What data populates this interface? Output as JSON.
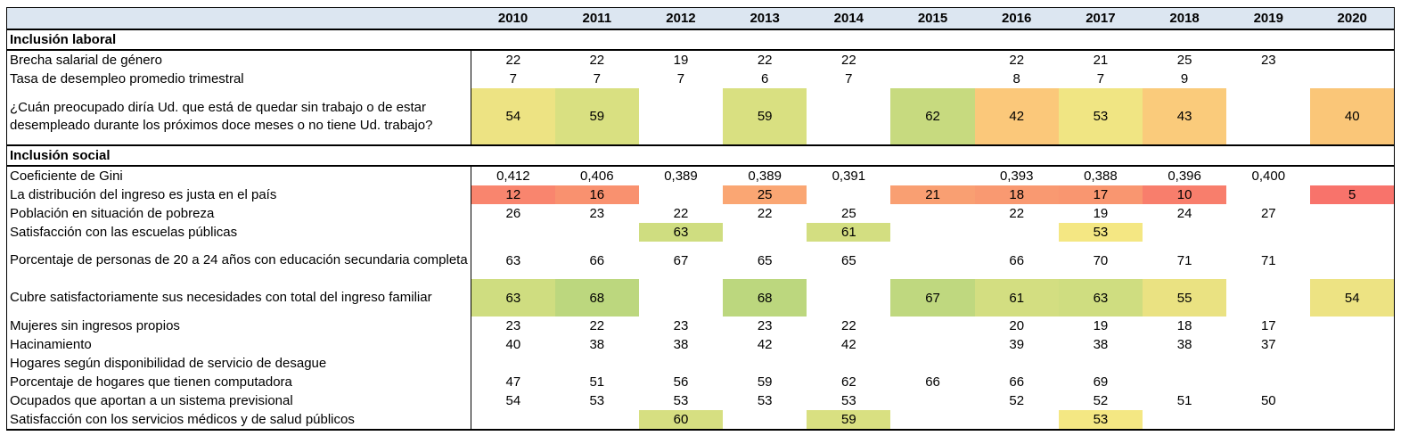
{
  "colors": {
    "header_bg": "#DCE6F1",
    "border": "#000000"
  },
  "header": {
    "corner_label": "",
    "years": [
      "2010",
      "2011",
      "2012",
      "2013",
      "2014",
      "2015",
      "2016",
      "2017",
      "2018",
      "2019",
      "2020"
    ]
  },
  "sections": [
    {
      "title": "Inclusión laboral",
      "rows": [
        {
          "label": "Brecha salarial de género",
          "lines": 1,
          "values": [
            "22",
            "22",
            "19",
            "22",
            "22",
            "",
            "22",
            "21",
            "25",
            "23",
            ""
          ],
          "colors": [
            "",
            "",
            "",
            "",
            "",
            "",
            "",
            "",
            "",
            "",
            ""
          ]
        },
        {
          "label": "Tasa de desempleo promedio trimestral",
          "lines": 1,
          "values": [
            "7",
            "7",
            "7",
            "6",
            "7",
            "",
            "8",
            "7",
            "9",
            "",
            ""
          ],
          "colors": [
            "",
            "",
            "",
            "",
            "",
            "",
            "",
            "",
            "",
            "",
            ""
          ]
        },
        {
          "label": "¿Cuán preocupado diría Ud. que está de quedar sin trabajo o de estar desempleado durante los próximos doce meses o no tiene Ud. trabajo?",
          "lines": 3,
          "values": [
            "54",
            "59",
            "",
            "59",
            "",
            "62",
            "42",
            "53",
            "43",
            "",
            "40"
          ],
          "colors": [
            "#EDE383",
            "#D9E081",
            "",
            "#D9E081",
            "",
            "#C7DA7F",
            "#FBC87A",
            "#F0E583",
            "#FACB7B",
            "",
            "#FAC678"
          ]
        }
      ]
    },
    {
      "title": "Inclusión social",
      "rows": [
        {
          "label": "Coeficiente de Gini",
          "lines": 1,
          "values": [
            "0,412",
            "0,406",
            "0,389",
            "0,389",
            "0,391",
            "",
            "0,393",
            "0,388",
            "0,396",
            "0,400",
            ""
          ],
          "colors": [
            "",
            "",
            "",
            "",
            "",
            "",
            "",
            "",
            "",
            "",
            ""
          ]
        },
        {
          "label": "La distribución del ingreso es justa en el país",
          "lines": 1,
          "values": [
            "12",
            "16",
            "",
            "25",
            "",
            "21",
            "18",
            "17",
            "10",
            "",
            "5"
          ],
          "colors": [
            "#F9856E",
            "#F9916F",
            "",
            "#FAA673",
            "",
            "#F99F72",
            "#F99971",
            "#F99670",
            "#F87E6C",
            "",
            "#F8736B"
          ]
        },
        {
          "label": "Población en situación de pobreza",
          "lines": 1,
          "values": [
            "26",
            "23",
            "22",
            "22",
            "25",
            "",
            "22",
            "19",
            "24",
            "27",
            ""
          ],
          "colors": [
            "",
            "",
            "",
            "",
            "",
            "",
            "",
            "",
            "",
            "",
            ""
          ]
        },
        {
          "label": "Satisfacción con las escuelas públicas",
          "lines": 1,
          "values": [
            "",
            "",
            "63",
            "",
            "61",
            "",
            "",
            "53",
            "",
            "",
            ""
          ],
          "colors": [
            "",
            "",
            "#CFDD80",
            "",
            "#D3DE81",
            "",
            "",
            "#F4E783",
            "",
            "",
            ""
          ]
        },
        {
          "label": "Porcentaje de personas de 20 a 24 años con educación secundaria completa",
          "lines": 2,
          "values": [
            "63",
            "66",
            "67",
            "65",
            "65",
            "",
            "66",
            "70",
            "71",
            "71",
            ""
          ],
          "colors": [
            "",
            "",
            "",
            "",
            "",
            "",
            "",
            "",
            "",
            "",
            ""
          ]
        },
        {
          "label": "Cubre satisfactoriamente sus necesidades con total del ingreso familiar",
          "lines": 2,
          "values": [
            "63",
            "68",
            "",
            "68",
            "",
            "67",
            "61",
            "63",
            "55",
            "",
            "54"
          ],
          "colors": [
            "#CFDD80",
            "#BCD77E",
            "",
            "#BCD77E",
            "",
            "#BFD87F",
            "#D3DE81",
            "#CFDD80",
            "#EAE282",
            "",
            "#EDE383"
          ]
        },
        {
          "label": "Mujeres sin ingresos propios",
          "lines": 1,
          "values": [
            "23",
            "22",
            "23",
            "23",
            "22",
            "",
            "20",
            "19",
            "18",
            "17",
            ""
          ],
          "colors": [
            "",
            "",
            "",
            "",
            "",
            "",
            "",
            "",
            "",
            "",
            ""
          ]
        },
        {
          "label": "Hacinamiento",
          "lines": 1,
          "values": [
            "40",
            "38",
            "38",
            "42",
            "42",
            "",
            "39",
            "38",
            "38",
            "37",
            ""
          ],
          "colors": [
            "",
            "",
            "",
            "",
            "",
            "",
            "",
            "",
            "",
            "",
            ""
          ]
        },
        {
          "label": "Hogares según disponibilidad de servicio de desague",
          "lines": 1,
          "values": [
            "",
            "",
            "",
            "",
            "",
            "",
            "",
            "",
            "",
            "",
            ""
          ],
          "colors": [
            "",
            "",
            "",
            "",
            "",
            "",
            "",
            "",
            "",
            "",
            ""
          ]
        },
        {
          "label": "Porcentaje de hogares que tienen computadora",
          "lines": 1,
          "values": [
            "47",
            "51",
            "56",
            "59",
            "62",
            "66",
            "66",
            "69",
            "",
            "",
            ""
          ],
          "colors": [
            "",
            "",
            "",
            "",
            "",
            "",
            "",
            "",
            "",
            "",
            ""
          ]
        },
        {
          "label": "Ocupados que aportan a un sistema previsional",
          "lines": 1,
          "values": [
            "54",
            "53",
            "53",
            "53",
            "53",
            "",
            "52",
            "52",
            "51",
            "50",
            ""
          ],
          "colors": [
            "",
            "",
            "",
            "",
            "",
            "",
            "",
            "",
            "",
            "",
            ""
          ]
        },
        {
          "label": "Satisfacción con los servicios médicos y de salud públicos",
          "lines": 1,
          "values": [
            "",
            "",
            "60",
            "",
            "59",
            "",
            "",
            "53",
            "",
            "",
            ""
          ],
          "colors": [
            "",
            "",
            "#D6DF81",
            "",
            "#D9E081",
            "",
            "",
            "#F4E783",
            "",
            "",
            ""
          ]
        }
      ]
    }
  ]
}
